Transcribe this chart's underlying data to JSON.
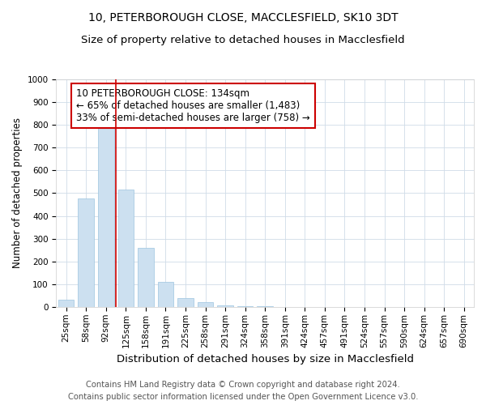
{
  "title": "10, PETERBOROUGH CLOSE, MACCLESFIELD, SK10 3DT",
  "subtitle": "Size of property relative to detached houses in Macclesfield",
  "xlabel": "Distribution of detached houses by size in Macclesfield",
  "ylabel": "Number of detached properties",
  "categories": [
    "25sqm",
    "58sqm",
    "92sqm",
    "125sqm",
    "158sqm",
    "191sqm",
    "225sqm",
    "258sqm",
    "291sqm",
    "324sqm",
    "358sqm",
    "391sqm",
    "424sqm",
    "457sqm",
    "491sqm",
    "524sqm",
    "557sqm",
    "590sqm",
    "624sqm",
    "657sqm",
    "690sqm"
  ],
  "values": [
    32,
    478,
    820,
    515,
    260,
    110,
    40,
    20,
    5,
    3,
    2,
    1,
    0,
    0,
    0,
    0,
    0,
    0,
    0,
    0,
    0
  ],
  "bar_color": "#cce0f0",
  "bar_edge_color": "#9cc4e0",
  "highlight_index": 3,
  "highlight_line_color": "#cc0000",
  "annotation_text": "10 PETERBOROUGH CLOSE: 134sqm\n← 65% of detached houses are smaller (1,483)\n33% of semi-detached houses are larger (758) →",
  "annotation_box_color": "#ffffff",
  "annotation_box_edge": "#cc0000",
  "ylim": [
    0,
    1000
  ],
  "yticks": [
    0,
    100,
    200,
    300,
    400,
    500,
    600,
    700,
    800,
    900,
    1000
  ],
  "footer_line1": "Contains HM Land Registry data © Crown copyright and database right 2024.",
  "footer_line2": "Contains public sector information licensed under the Open Government Licence v3.0.",
  "background_color": "#ffffff",
  "plot_bg_color": "#ffffff",
  "title_fontsize": 10,
  "subtitle_fontsize": 9.5,
  "xlabel_fontsize": 9.5,
  "ylabel_fontsize": 8.5,
  "tick_fontsize": 7.5,
  "footer_fontsize": 7.2,
  "annotation_fontsize": 8.5
}
